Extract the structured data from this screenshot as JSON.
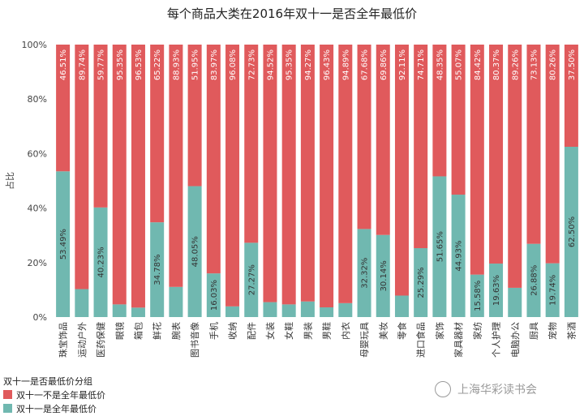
{
  "chart_data": {
    "type": "bar",
    "stacked": true,
    "title": "每个商品大类在2016年双十一是否全年最低价",
    "xlabel": "",
    "ylabel": "占比",
    "ylim": [
      0,
      100
    ],
    "yticks": [
      "0%",
      "20%",
      "40%",
      "60%",
      "80%",
      "100%"
    ],
    "grid": false,
    "legend_title": "双十一是否最低价分组",
    "legend_position": "bottom-left",
    "categories": [
      "珠宝饰品",
      "运动户外",
      "医药保健",
      "眼镜",
      "箱包",
      "鲜花",
      "腕表",
      "图书音像",
      "手机",
      "收纳",
      "配件",
      "女装",
      "女鞋",
      "男装",
      "男鞋",
      "内衣",
      "母婴玩具",
      "美妆",
      "零食",
      "进口食品",
      "家饰",
      "家具器材",
      "家纺",
      "个人护理",
      "电脑办公",
      "厨具",
      "宠物",
      "茶酒"
    ],
    "series": [
      {
        "name": "双十一是全年最低价",
        "color": "#70b8b0",
        "values": [
          53.49,
          10.26,
          40.23,
          4.65,
          3.47,
          34.78,
          11.07,
          48.05,
          16.03,
          3.92,
          27.27,
          5.48,
          4.65,
          5.73,
          3.57,
          5.11,
          32.32,
          30.14,
          7.89,
          25.29,
          51.65,
          44.93,
          15.58,
          19.63,
          10.74,
          26.88,
          19.74,
          62.5
        ],
        "labels": [
          "53.49%",
          "",
          "40.23%",
          "",
          "",
          "34.78%",
          "",
          "48.05%",
          "16.03%",
          "",
          "27.27%",
          "",
          "",
          "",
          "",
          "",
          "32.32%",
          "30.14%",
          "",
          "25.29%",
          "51.65%",
          "44.93%",
          "15.58%",
          "19.63%",
          "",
          "26.88%",
          "19.74%",
          "62.50%"
        ]
      },
      {
        "name": "双十一不是全年最低价",
        "color": "#e05a5c",
        "values": [
          46.51,
          89.74,
          59.77,
          95.35,
          96.53,
          65.22,
          88.93,
          51.95,
          83.97,
          96.08,
          72.73,
          94.52,
          95.35,
          94.27,
          96.43,
          94.89,
          67.68,
          69.86,
          92.11,
          74.71,
          48.35,
          55.07,
          84.42,
          80.37,
          89.26,
          73.13,
          80.26,
          37.5
        ],
        "labels": [
          "46.51%",
          "89.74%",
          "59.77%",
          "95.35%",
          "96.53%",
          "65.22%",
          "88.93%",
          "51.95%",
          "83.97%",
          "96.08%",
          "72.73%",
          "94.52%",
          "95.35%",
          "94.27%",
          "96.43%",
          "94.89%",
          "67.68%",
          "69.86%",
          "92.11%",
          "74.71%",
          "48.35%",
          "55.07%",
          "84.42%",
          "80.37%",
          "89.26%",
          "73.13%",
          "80.26%",
          "37.50%"
        ]
      }
    ]
  },
  "legend_items": [
    {
      "label": "双十一不是全年最低价",
      "color": "#e05a5c"
    },
    {
      "label": "双十一是全年最低价",
      "color": "#70b8b0"
    }
  ],
  "watermark": "上海华彩读书会"
}
